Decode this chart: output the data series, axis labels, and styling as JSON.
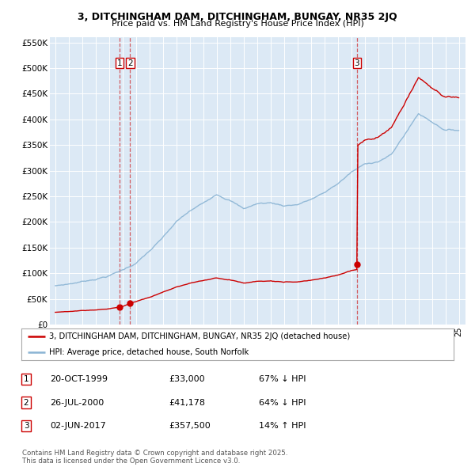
{
  "title": "3, DITCHINGHAM DAM, DITCHINGHAM, BUNGAY, NR35 2JQ",
  "subtitle": "Price paid vs. HM Land Registry's House Price Index (HPI)",
  "hpi_color": "#8ab4d4",
  "sale_color": "#cc0000",
  "background_color": "#dce9f5",
  "ylim": [
    0,
    560000
  ],
  "yticks": [
    0,
    50000,
    100000,
    150000,
    200000,
    250000,
    300000,
    350000,
    400000,
    450000,
    500000,
    550000
  ],
  "ytick_labels": [
    "£0",
    "£50K",
    "£100K",
    "£150K",
    "£200K",
    "£250K",
    "£300K",
    "£350K",
    "£400K",
    "£450K",
    "£500K",
    "£550K"
  ],
  "sales": [
    {
      "date_num": 1999.79,
      "price": 33000,
      "label": "1"
    },
    {
      "date_num": 2000.57,
      "price": 41178,
      "label": "2"
    },
    {
      "date_num": 2017.42,
      "price": 357500,
      "label": "3"
    }
  ],
  "legend_property": "3, DITCHINGHAM DAM, DITCHINGHAM, BUNGAY, NR35 2JQ (detached house)",
  "legend_hpi": "HPI: Average price, detached house, South Norfolk",
  "table": [
    {
      "num": "1",
      "date": "20-OCT-1999",
      "price": "£33,000",
      "hpi": "67% ↓ HPI"
    },
    {
      "num": "2",
      "date": "26-JUL-2000",
      "price": "£41,178",
      "hpi": "64% ↓ HPI"
    },
    {
      "num": "3",
      "date": "02-JUN-2017",
      "price": "£357,500",
      "hpi": "14% ↑ HPI"
    }
  ],
  "footer": "Contains HM Land Registry data © Crown copyright and database right 2025.\nThis data is licensed under the Open Government Licence v3.0."
}
